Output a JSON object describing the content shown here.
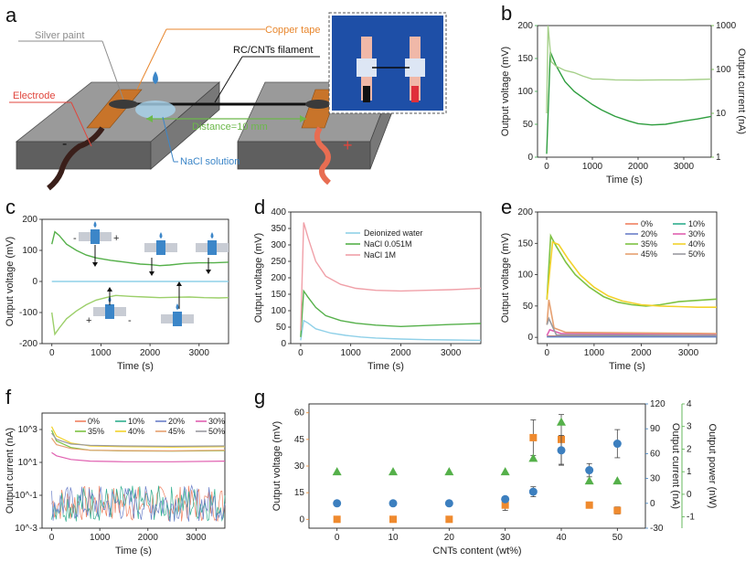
{
  "figure": {
    "panels": {
      "a": "a",
      "b": "b",
      "c": "c",
      "d": "d",
      "e": "e",
      "f": "f",
      "g": "g"
    },
    "schematic": {
      "copper_tape": "Copper tape",
      "silver_paint": "Silver paint",
      "filament": "RC/CNTs filament",
      "electrode": "Electrode",
      "distance": "Distance=10 mm",
      "nacl": "NaCl solution",
      "minus": "-",
      "plus": "+"
    },
    "colors": {
      "copper": "#e8872e",
      "silver": "#8c8c8c",
      "electrode": "#e0463d",
      "distance": "#6cb84a",
      "nacl": "#3c86c8",
      "green_axis": "#5ab031",
      "orange": "#ef8a2e",
      "blue": "#3c7fbf",
      "green": "#55b04a",
      "pink": "#f0a0a8",
      "lightblue": "#8fd0e8"
    }
  },
  "chart_data": [
    {
      "panel": "b",
      "type": "line",
      "xlabel": "Time (s)",
      "ylabel": "Output voltage (mV)",
      "y2label": "Output current (nA)",
      "xlim": [
        -200,
        3600
      ],
      "ylim": [
        0,
        200
      ],
      "y2lim": [
        1,
        1000
      ],
      "y2scale": "log",
      "xticks": [
        "0",
        "1000",
        "2000",
        "3000"
      ],
      "yticks": [
        "0",
        "50",
        "100",
        "150",
        "200"
      ],
      "y2ticks": [
        "1",
        "10",
        "100",
        "1000"
      ],
      "series": [
        {
          "axis": "y",
          "color": "#2f9e3f",
          "x": [
            0,
            80,
            200,
            400,
            600,
            800,
            1000,
            1200,
            1500,
            1800,
            2000,
            2300,
            2600,
            3000,
            3300,
            3600
          ],
          "y": [
            5,
            160,
            140,
            115,
            100,
            90,
            80,
            72,
            62,
            55,
            51,
            49,
            50,
            55,
            58,
            62
          ]
        },
        {
          "axis": "y2",
          "color": "#a6d08a",
          "x": [
            0,
            30,
            100,
            200,
            400,
            600,
            800,
            1000,
            1200,
            1500,
            2000,
            2500,
            3000,
            3300,
            3600
          ],
          "y": [
            10,
            1000,
            150,
            120,
            95,
            85,
            70,
            60,
            60,
            58,
            57,
            58,
            58,
            59,
            60
          ]
        }
      ]
    },
    {
      "panel": "c",
      "type": "line",
      "xlabel": "Time (s)",
      "ylabel": "Output voltage (mV)",
      "xlim": [
        -200,
        3600
      ],
      "ylim": [
        -200,
        200
      ],
      "xticks": [
        "0",
        "1000",
        "2000",
        "3000"
      ],
      "yticks": [
        "-200",
        "-100",
        "0",
        "100",
        "200"
      ],
      "series": [
        {
          "color": "#55b04a",
          "x": [
            0,
            60,
            150,
            300,
            500,
            700,
            900,
            1200,
            1500,
            1800,
            2000,
            2200,
            2400,
            2700,
            3000,
            3300,
            3600
          ],
          "y": [
            120,
            160,
            148,
            120,
            100,
            85,
            76,
            68,
            62,
            56,
            54,
            51,
            53,
            58,
            60,
            60,
            62
          ]
        },
        {
          "color": "#8fd0e8",
          "x": [
            0,
            3600
          ],
          "y": [
            0,
            0
          ]
        },
        {
          "color": "#9ccf6a",
          "x": [
            0,
            60,
            150,
            300,
            500,
            700,
            900,
            1100,
            1300,
            1600,
            1900,
            2200,
            2500,
            2800,
            3100,
            3400,
            3600
          ],
          "y": [
            -100,
            -170,
            -150,
            -120,
            -95,
            -75,
            -60,
            -52,
            -45,
            -48,
            -50,
            -52,
            -51,
            -50,
            -52,
            -53,
            -52
          ]
        }
      ],
      "markers": {
        "minus": "-",
        "plus": "+"
      }
    },
    {
      "panel": "d",
      "type": "line",
      "xlabel": "Time (s)",
      "ylabel": "Output voltage (mV)",
      "xlim": [
        -200,
        3600
      ],
      "ylim": [
        0,
        400
      ],
      "xticks": [
        "0",
        "1000",
        "2000",
        "3000"
      ],
      "yticks": [
        "0",
        "50",
        "100",
        "150",
        "200",
        "250",
        "300",
        "350",
        "400"
      ],
      "legend": [
        "Deionized water",
        "NaCl 0.051M",
        "NaCl 1M"
      ],
      "legend_position": "top-right",
      "series": [
        {
          "name": "Deionized water",
          "color": "#8fd0e8",
          "x": [
            0,
            60,
            150,
            300,
            600,
            900,
            1200,
            1500,
            2000,
            2500,
            3000,
            3600
          ],
          "y": [
            10,
            70,
            62,
            45,
            32,
            25,
            20,
            17,
            14,
            12,
            11,
            10
          ]
        },
        {
          "name": "NaCl 0.051M",
          "color": "#55b04a",
          "x": [
            0,
            60,
            150,
            300,
            500,
            800,
            1100,
            1500,
            2000,
            2500,
            3000,
            3600
          ],
          "y": [
            20,
            160,
            140,
            110,
            85,
            70,
            62,
            56,
            52,
            55,
            58,
            61
          ]
        },
        {
          "name": "NaCl 1M",
          "color": "#f0a0a8",
          "x": [
            0,
            60,
            150,
            300,
            500,
            800,
            1100,
            1500,
            2000,
            2500,
            3000,
            3600
          ],
          "y": [
            40,
            368,
            320,
            250,
            205,
            180,
            168,
            162,
            160,
            162,
            164,
            168
          ]
        }
      ]
    },
    {
      "panel": "e",
      "type": "line",
      "xlabel": "Time (s)",
      "ylabel": "Output voltage (mV)",
      "xlim": [
        -200,
        3600
      ],
      "ylim": [
        -10,
        200
      ],
      "xticks": [
        "0",
        "1000",
        "2000",
        "3000"
      ],
      "yticks": [
        "0",
        "50",
        "100",
        "150",
        "200"
      ],
      "legend": [
        "0%",
        "10%",
        "20%",
        "30%",
        "35%",
        "40%",
        "45%",
        "50%"
      ],
      "legend_position": "top-right",
      "series": [
        {
          "name": "0%",
          "color": "#f08060",
          "x": [
            0,
            3600
          ],
          "y": [
            2,
            2
          ]
        },
        {
          "name": "10%",
          "color": "#2fae8e",
          "x": [
            0,
            3600
          ],
          "y": [
            1,
            1
          ]
        },
        {
          "name": "20%",
          "color": "#6a7fc8",
          "x": [
            0,
            3600
          ],
          "y": [
            1,
            1
          ]
        },
        {
          "name": "30%",
          "color": "#e060b0",
          "x": [
            0,
            60,
            300,
            3600
          ],
          "y": [
            3,
            12,
            6,
            5
          ]
        },
        {
          "name": "35%",
          "color": "#7dc242",
          "x": [
            0,
            80,
            200,
            400,
            600,
            900,
            1200,
            1500,
            1800,
            2100,
            2400,
            2800,
            3200,
            3600
          ],
          "y": [
            60,
            162,
            145,
            120,
            100,
            80,
            65,
            56,
            52,
            50,
            52,
            57,
            59,
            61
          ]
        },
        {
          "name": "40%",
          "color": "#f2d22b",
          "x": [
            0,
            120,
            250,
            450,
            700,
            1000,
            1300,
            1600,
            2000,
            2400,
            2800,
            3200,
            3600
          ],
          "y": [
            60,
            152,
            148,
            125,
            100,
            80,
            66,
            58,
            52,
            50,
            49,
            48,
            48
          ]
        },
        {
          "name": "45%",
          "color": "#e6a070",
          "x": [
            0,
            40,
            150,
            400,
            3600
          ],
          "y": [
            20,
            60,
            15,
            8,
            6
          ]
        },
        {
          "name": "50%",
          "color": "#9a9aa0",
          "x": [
            0,
            40,
            200,
            3600
          ],
          "y": [
            20,
            30,
            4,
            3
          ]
        }
      ]
    },
    {
      "panel": "f",
      "type": "line",
      "xlabel": "Time (s)",
      "ylabel": "Output current (nA)",
      "xlim": [
        -200,
        3600
      ],
      "ylim": [
        0.001,
        10000
      ],
      "yscale": "log",
      "xticks": [
        "0",
        "1000",
        "2000",
        "3000"
      ],
      "yticks": [
        "10^-3",
        "10^-1",
        "10^1",
        "10^3"
      ],
      "legend": [
        "0%",
        "10%",
        "20%",
        "30%",
        "35%",
        "40%",
        "45%",
        "50%"
      ],
      "legend_position": "top",
      "series": [
        {
          "name": "0%",
          "color": "#f08060",
          "noise": true,
          "level": 0.05
        },
        {
          "name": "10%",
          "color": "#2fae8e",
          "noise": true,
          "level": 0.05
        },
        {
          "name": "20%",
          "color": "#6a7fc8",
          "noise": true,
          "level": 0.05
        },
        {
          "name": "30%",
          "color": "#e060b0",
          "x": [
            0,
            100,
            400,
            800,
            1500,
            2500,
            3600
          ],
          "y": [
            40,
            25,
            15,
            12,
            11,
            11,
            12
          ]
        },
        {
          "name": "35%",
          "color": "#7dc242",
          "x": [
            0,
            100,
            400,
            800,
            1500,
            2500,
            3600
          ],
          "y": [
            900,
            200,
            80,
            55,
            50,
            48,
            52
          ]
        },
        {
          "name": "40%",
          "color": "#f2d22b",
          "x": [
            0,
            100,
            400,
            800,
            1500,
            2500,
            3600
          ],
          "y": [
            1500,
            400,
            150,
            100,
            90,
            85,
            90
          ]
        },
        {
          "name": "45%",
          "color": "#e6a070",
          "x": [
            0,
            100,
            400,
            800,
            1500,
            2500,
            3600
          ],
          "y": [
            300,
            120,
            70,
            55,
            52,
            50,
            55
          ]
        },
        {
          "name": "50%",
          "color": "#9a9aa0",
          "x": [
            0,
            100,
            400,
            800,
            1500,
            2500,
            3600
          ],
          "y": [
            600,
            250,
            130,
            110,
            100,
            95,
            100
          ]
        }
      ]
    },
    {
      "panel": "g",
      "type": "scatter",
      "xlabel": "CNTs content (wt%)",
      "ylabel": "Output voltage (mV)",
      "y2label": "Output current (nA)",
      "y3label": "Output power (nW)",
      "categories": [
        0,
        10,
        20,
        30,
        35,
        40,
        45,
        50
      ],
      "xticks": [
        "0",
        "10",
        "20",
        "30",
        "40",
        "50"
      ],
      "yticks": [
        "0",
        "15",
        "30",
        "45",
        "60"
      ],
      "y2ticks": [
        "-30",
        "0",
        "30",
        "60",
        "90",
        "120"
      ],
      "y3ticks": [
        "-1",
        "0",
        "1",
        "2",
        "3",
        "4"
      ],
      "ylim": [
        -5,
        65
      ],
      "y2lim": [
        -30,
        120
      ],
      "y3lim": [
        -1.5,
        4
      ],
      "series": [
        {
          "axis": "y",
          "marker": "square",
          "color": "#ef8a2e",
          "x": [
            0,
            10,
            20,
            30,
            35,
            40,
            45,
            50
          ],
          "y": [
            0,
            0,
            0,
            8,
            46,
            45,
            8,
            5
          ],
          "err": [
            0,
            0,
            0,
            3,
            10,
            14,
            0,
            2
          ]
        },
        {
          "axis": "y2",
          "marker": "circle",
          "color": "#3c7fbf",
          "x": [
            0,
            10,
            20,
            30,
            35,
            40,
            45,
            50
          ],
          "y": [
            0,
            0,
            0,
            5,
            14,
            64,
            40,
            72
          ],
          "err": [
            0,
            0,
            0,
            3,
            6,
            18,
            8,
            17
          ]
        },
        {
          "axis": "y3",
          "marker": "triangle",
          "color": "#55b04a",
          "x": [
            0,
            10,
            20,
            30,
            35,
            40,
            45,
            50
          ],
          "y": [
            1,
            1,
            1,
            1,
            1.6,
            3.2,
            0.6,
            0.6
          ],
          "err": [
            0,
            0,
            0,
            0,
            0,
            0,
            0,
            0
          ]
        }
      ]
    }
  ]
}
